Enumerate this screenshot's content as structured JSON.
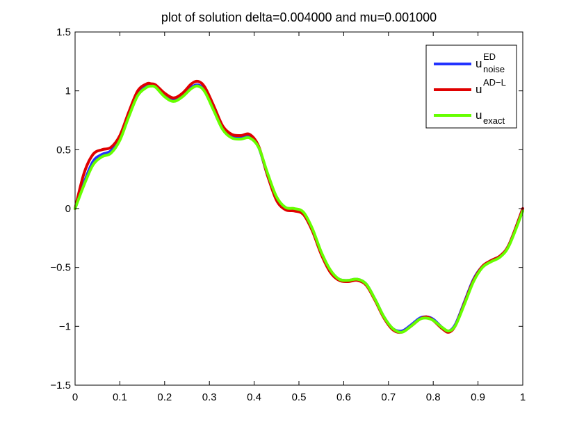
{
  "chart_data": {
    "type": "line",
    "title": "plot of solution delta=0.004000 and mu=0.001000",
    "xlabel": "",
    "ylabel": "",
    "xlim": [
      0,
      1
    ],
    "ylim": [
      -1.5,
      1.5
    ],
    "x_ticks": [
      "0",
      "0.1",
      "0.2",
      "0.3",
      "0.4",
      "0.5",
      "0.6",
      "0.7",
      "0.8",
      "0.9",
      "1"
    ],
    "y_ticks": [
      "1.5",
      "1",
      "0.5",
      "0",
      "−0.5",
      "−1",
      "−1.5"
    ],
    "grid": false,
    "legend_position": "top-right",
    "x": [
      0,
      0.02,
      0.04,
      0.06,
      0.08,
      0.1,
      0.12,
      0.14,
      0.16,
      0.17,
      0.18,
      0.2,
      0.22,
      0.24,
      0.26,
      0.275,
      0.29,
      0.31,
      0.33,
      0.35,
      0.37,
      0.39,
      0.41,
      0.43,
      0.45,
      0.47,
      0.49,
      0.51,
      0.53,
      0.55,
      0.57,
      0.59,
      0.61,
      0.63,
      0.65,
      0.67,
      0.69,
      0.71,
      0.73,
      0.75,
      0.77,
      0.785,
      0.8,
      0.82,
      0.835,
      0.85,
      0.87,
      0.89,
      0.91,
      0.93,
      0.95,
      0.97,
      1.0
    ],
    "series": [
      {
        "name": "u",
        "sup": "ED",
        "sub": "noise",
        "color": "#2233ff",
        "values": [
          0,
          0.22,
          0.4,
          0.46,
          0.49,
          0.6,
          0.8,
          0.98,
          1.04,
          1.05,
          1.04,
          0.96,
          0.92,
          0.96,
          1.03,
          1.05,
          1.0,
          0.84,
          0.68,
          0.61,
          0.6,
          0.61,
          0.52,
          0.28,
          0.08,
          0.0,
          -0.01,
          -0.04,
          -0.18,
          -0.38,
          -0.53,
          -0.6,
          -0.61,
          -0.6,
          -0.64,
          -0.77,
          -0.92,
          -1.02,
          -1.04,
          -0.99,
          -0.93,
          -0.92,
          -0.94,
          -1.01,
          -1.04,
          -0.98,
          -0.79,
          -0.6,
          -0.49,
          -0.44,
          -0.4,
          -0.3,
          0
        ]
      },
      {
        "name": "u",
        "sup": "AD−L",
        "sub": "",
        "color": "#e00000",
        "values": [
          0,
          0.3,
          0.46,
          0.5,
          0.52,
          0.62,
          0.82,
          1.0,
          1.06,
          1.06,
          1.05,
          0.98,
          0.94,
          0.98,
          1.06,
          1.08,
          1.03,
          0.87,
          0.7,
          0.63,
          0.62,
          0.63,
          0.53,
          0.28,
          0.07,
          -0.01,
          -0.02,
          -0.05,
          -0.19,
          -0.39,
          -0.54,
          -0.61,
          -0.62,
          -0.61,
          -0.65,
          -0.78,
          -0.93,
          -1.03,
          -1.05,
          -1.0,
          -0.94,
          -0.92,
          -0.95,
          -1.02,
          -1.05,
          -0.99,
          -0.8,
          -0.61,
          -0.49,
          -0.44,
          -0.4,
          -0.3,
          0
        ]
      },
      {
        "name": "u",
        "sup": "",
        "sub": "exact",
        "color": "#66ff00",
        "values": [
          0,
          0.2,
          0.37,
          0.44,
          0.47,
          0.58,
          0.78,
          0.96,
          1.03,
          1.04,
          1.03,
          0.95,
          0.91,
          0.95,
          1.02,
          1.04,
          0.99,
          0.83,
          0.67,
          0.6,
          0.59,
          0.6,
          0.52,
          0.3,
          0.1,
          0.01,
          0.0,
          -0.03,
          -0.17,
          -0.37,
          -0.52,
          -0.6,
          -0.61,
          -0.6,
          -0.64,
          -0.77,
          -0.92,
          -1.02,
          -1.05,
          -1.0,
          -0.94,
          -0.93,
          -0.95,
          -1.01,
          -1.04,
          -0.99,
          -0.81,
          -0.62,
          -0.5,
          -0.45,
          -0.41,
          -0.31,
          -0.02
        ]
      }
    ]
  }
}
